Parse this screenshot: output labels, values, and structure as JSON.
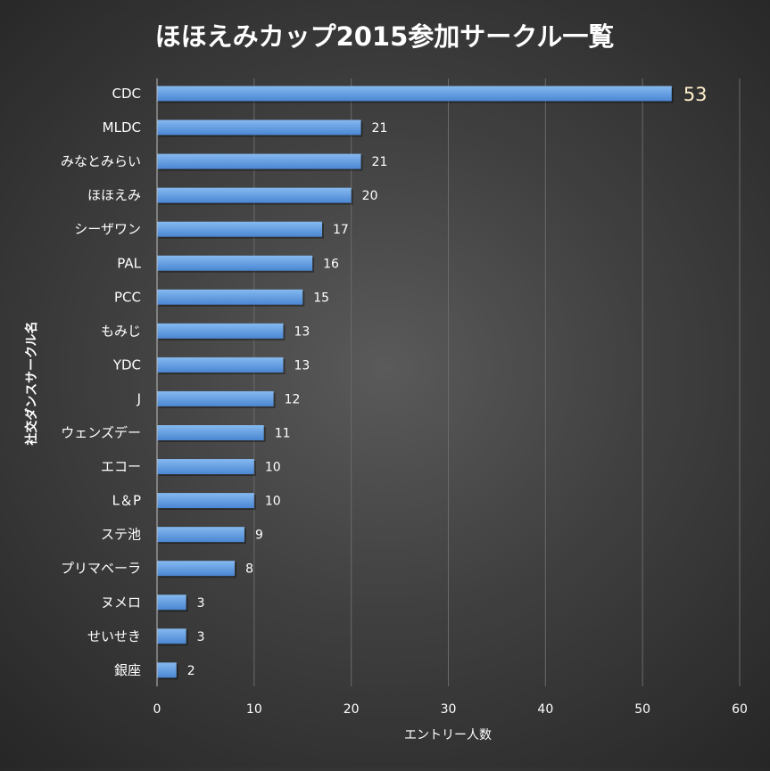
{
  "chart_data": {
    "type": "bar",
    "orientation": "horizontal",
    "title": "ほほえみカップ2015参加サークル一覧",
    "xlabel": "エントリー人数",
    "ylabel": "社交ダンスサークル名",
    "categories": [
      "CDC",
      "MLDC",
      "みなとみらい",
      "ほほえみ",
      "シーザワン",
      "PAL",
      "PCC",
      "もみじ",
      "YDC",
      "J",
      "ウェンズデー",
      "エコー",
      "L＆P",
      "ステ池",
      "プリマベーラ",
      "ヌメロ",
      "せいせき",
      "銀座"
    ],
    "values": [
      53,
      21,
      21,
      20,
      17,
      16,
      15,
      13,
      13,
      12,
      11,
      10,
      10,
      9,
      8,
      3,
      3,
      2
    ],
    "xlim": [
      0,
      60
    ],
    "xticks": [
      0,
      10,
      20,
      30,
      40,
      50,
      60
    ],
    "grid": true,
    "legend": "none",
    "colors": {
      "bar": "#4f8fdc",
      "bar_light": "#7db3ee",
      "text": "#ffffff",
      "gridline": "#6a6a6a",
      "highlight_label": "#fff2cc"
    }
  }
}
